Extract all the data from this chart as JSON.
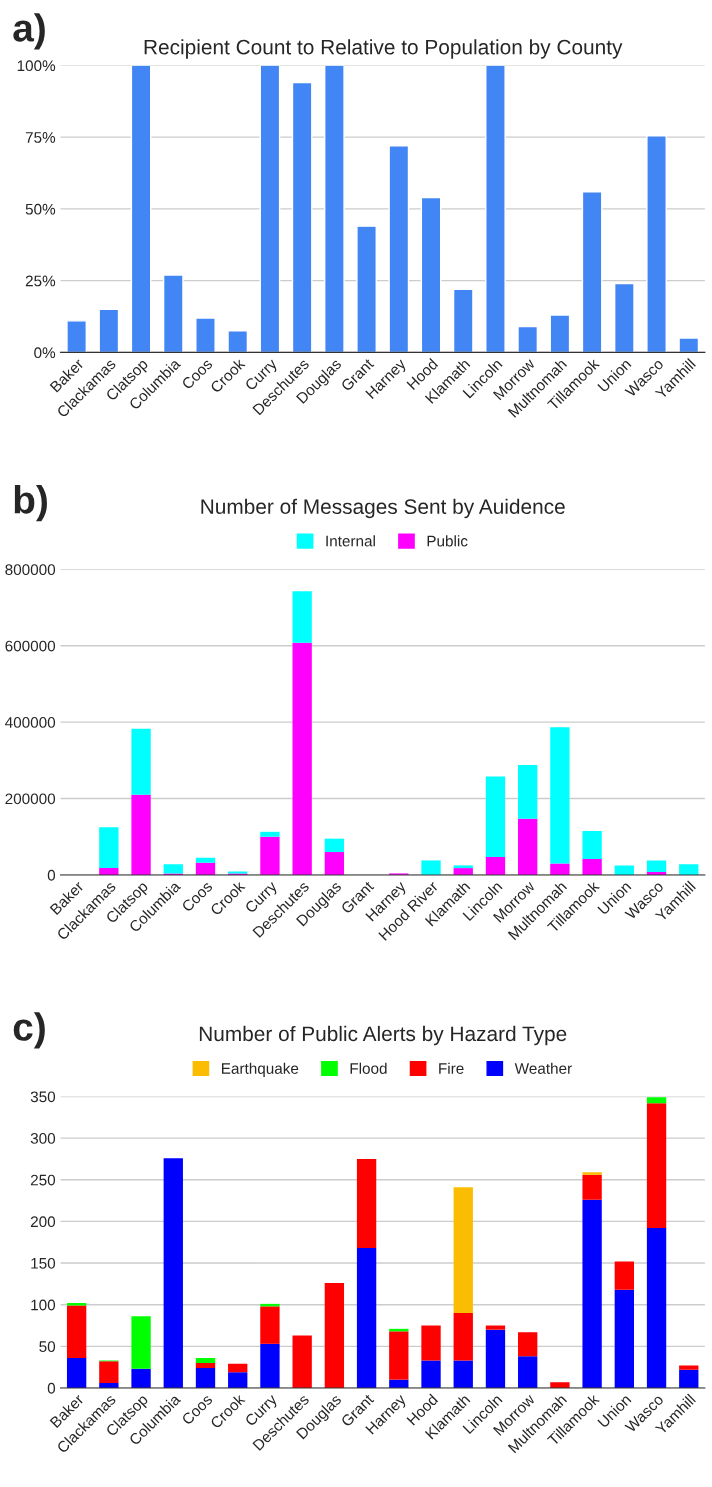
{
  "chart_data": [
    {
      "type": "bar",
      "title": "Recipient Count to Relative to Population by County",
      "annotations": [
        "a)"
      ],
      "categories": [
        "Baker",
        "Clackamas",
        "Clatsop",
        "Columbia",
        "Coos",
        "Crook",
        "Curry",
        "Deschutes",
        "Douglas",
        "Grant",
        "Harney",
        "Hood",
        "Klamath",
        "Lincoln",
        "Morrow",
        "Multnomah",
        "Tillamook",
        "Union",
        "Wasco",
        "Yamhill"
      ],
      "values": [
        11,
        15,
        100,
        27,
        12,
        7.5,
        100,
        94,
        100,
        44,
        72,
        54,
        22,
        100,
        9,
        13,
        56,
        24,
        75.5,
        5
      ],
      "color": "#4285f4",
      "ylim": [
        0,
        100
      ],
      "yticks": [
        {
          "value": 0,
          "label": "0%"
        },
        {
          "value": 25,
          "label": "25%"
        },
        {
          "value": 50,
          "label": "50%"
        },
        {
          "value": 75,
          "label": "75%"
        },
        {
          "value": 100,
          "label": "100%"
        }
      ],
      "grid": "y",
      "legend": false
    },
    {
      "type": "bar",
      "title": "Number of Messages Sent by Auidence",
      "annotations": [
        "b)"
      ],
      "stacked": true,
      "categories": [
        "Baker",
        "Clackamas",
        "Clatsop",
        "Columbia",
        "Coos",
        "Crook",
        "Curry",
        "Deschutes",
        "Douglas",
        "Grant",
        "Harney",
        "Hood River",
        "Klamath",
        "Lincoln",
        "Morrow",
        "Multnomah",
        "Tillamook",
        "Union",
        "Wasco",
        "Yamhill"
      ],
      "series": [
        {
          "name": "Public",
          "color": "#ff00ff",
          "values": [
            0,
            18000,
            210000,
            4000,
            32000,
            4000,
            100000,
            608000,
            60000,
            0,
            4000,
            0,
            18000,
            47000,
            147000,
            30000,
            42000,
            0,
            8000,
            0
          ]
        },
        {
          "name": "Internal",
          "color": "#00ffff",
          "values": [
            0,
            107000,
            173000,
            24000,
            13000,
            5000,
            13000,
            135000,
            35000,
            0,
            0,
            38000,
            7000,
            211000,
            141000,
            357000,
            73000,
            25000,
            30000,
            28000
          ]
        }
      ],
      "ylim": [
        0,
        800000
      ],
      "yticks": [
        0,
        200000,
        400000,
        600000,
        800000
      ],
      "grid": "y",
      "legend": "top"
    },
    {
      "type": "bar",
      "title": "Number of Public Alerts by Hazard Type",
      "annotations": [
        "c)"
      ],
      "stacked": true,
      "categories": [
        "Baker",
        "Clackamas",
        "Clatsop",
        "Columbia",
        "Coos",
        "Crook",
        "Curry",
        "Deschutes",
        "Douglas",
        "Grant",
        "Harney",
        "Hood",
        "Klamath",
        "Lincoln",
        "Morrow",
        "Multnomah",
        "Tillamook",
        "Union",
        "Wasco",
        "Yamhill"
      ],
      "series": [
        {
          "name": "Weather",
          "color": "#0000ff",
          "values": [
            36,
            6,
            23,
            276,
            24,
            19,
            53,
            0,
            0,
            168,
            10,
            33,
            33,
            70,
            38,
            0,
            226,
            118,
            192,
            22
          ]
        },
        {
          "name": "Fire",
          "color": "#ff0000",
          "values": [
            63,
            26,
            0,
            0,
            6,
            10,
            45,
            63,
            126,
            107,
            58,
            42,
            57,
            5,
            29,
            7,
            30,
            34,
            150,
            5
          ]
        },
        {
          "name": "Flood",
          "color": "#00ff00",
          "values": [
            3,
            1,
            63,
            0,
            6,
            0,
            3,
            0,
            0,
            0,
            3,
            0,
            0,
            0,
            0,
            0,
            0,
            0,
            7,
            0
          ]
        },
        {
          "name": "Earthquake",
          "color": "#fbbc04",
          "values": [
            0,
            0,
            0,
            0,
            0,
            0,
            0,
            0,
            0,
            0,
            0,
            0,
            151,
            0,
            0,
            0,
            3,
            0,
            0,
            0
          ]
        }
      ],
      "ylim": [
        0,
        350
      ],
      "yticks": [
        0,
        50,
        100,
        150,
        200,
        250,
        300,
        350
      ],
      "grid": "y",
      "legend": "top"
    }
  ]
}
